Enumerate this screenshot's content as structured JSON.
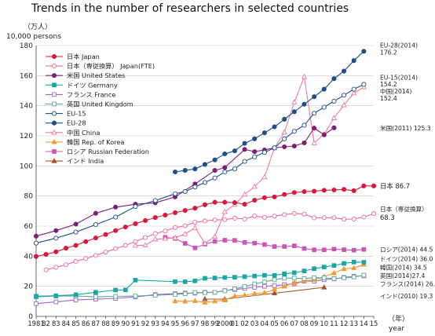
{
  "chart_data": {
    "type": "line",
    "title": "Trends in the number of researchers in selected countries",
    "ylabel_ja": "（万人）",
    "ylabel": "10,000 persons",
    "xlabel_ja": "（年）",
    "xlabel": "year",
    "ylim": [
      0,
      180
    ],
    "yticks": [
      0,
      20,
      40,
      60,
      80,
      100,
      120,
      140,
      160,
      180
    ],
    "grid": true,
    "legend_placement": "top-left",
    "x_tick_labels": [
      "1981",
      "82",
      "83",
      "84",
      "85",
      "86",
      "87",
      "88",
      "89",
      "90",
      "91",
      "92",
      "93",
      "94",
      "95",
      "96",
      "97",
      "98",
      "99",
      "2000",
      "01",
      "02",
      "03",
      "04",
      "05",
      "06",
      "07",
      "08",
      "09",
      "10",
      "11",
      "12",
      "13",
      "14",
      "15"
    ],
    "series": [
      {
        "key": "jp",
        "name": "日本 Japan",
        "color": "#d9183b",
        "marker": "circle",
        "filled": true,
        "dash": false,
        "x": [
          1981,
          1982,
          1983,
          1984,
          1985,
          1986,
          1987,
          1988,
          1989,
          1990,
          1991,
          1992,
          1993,
          1994,
          1995,
          1996,
          1997,
          1998,
          1999,
          2000,
          2001,
          2002,
          2003,
          2004,
          2005,
          2006,
          2007,
          2008,
          2009,
          2010,
          2011,
          2012,
          2013,
          2014,
          2015
        ],
        "y": [
          39.8,
          41.2,
          42.9,
          45.3,
          47.2,
          49.7,
          52.1,
          54.4,
          57.0,
          59.4,
          61.6,
          63.7,
          65.7,
          67.3,
          68.9,
          70.4,
          71.9,
          74.2,
          75.8,
          75.8,
          75.6,
          74.5,
          77.2,
          78.9,
          79.4,
          81.0,
          82.3,
          82.9,
          83.2,
          83.8,
          84.0,
          84.4,
          83.5,
          86.7,
          86.7
        ]
      },
      {
        "key": "jp_fte",
        "name": "日本（専従換算） Japan(FTE)",
        "color": "#ee6b8e",
        "marker": "circle",
        "filled": false,
        "dash": false,
        "x": [
          1982,
          1983,
          1984,
          1985,
          1986,
          1987,
          1988,
          1989,
          1990,
          1991,
          1992,
          1993,
          1994,
          1995,
          1996,
          1997,
          1998,
          1999,
          2000,
          2001,
          2002,
          2003,
          2004,
          2005,
          2006,
          2007,
          2008,
          2009,
          2010,
          2011,
          2012,
          2013,
          2014,
          2015
        ],
        "y": [
          30.9,
          32.6,
          34.3,
          36.6,
          38.4,
          40.5,
          42.7,
          45.0,
          47.2,
          49.7,
          52.4,
          55.0,
          56.8,
          59.0,
          60.2,
          62.5,
          63.4,
          64.1,
          64.3,
          65.3,
          64.7,
          66.7,
          65.8,
          66.7,
          67.6,
          68.4,
          68.0,
          65.5,
          65.6,
          65.6,
          64.6,
          64.7,
          66.0,
          68.3
        ]
      },
      {
        "key": "us",
        "name": "米国 United States",
        "color": "#7b2079",
        "marker": "circle",
        "filled": true,
        "dash": false,
        "x": [
          1981,
          1983,
          1985,
          1987,
          1989,
          1991,
          1993,
          1995,
          1997,
          1999,
          2000,
          2002,
          2003,
          2004,
          2005,
          2006,
          2007,
          2008,
          2009,
          2010,
          2011
        ],
        "y": [
          53.3,
          57.0,
          61.3,
          68.5,
          72.6,
          74.5,
          75.5,
          79.4,
          88.0,
          97.0,
          98.9,
          111.0,
          109.5,
          110.6,
          112.0,
          112.7,
          113.2,
          115.3,
          125.1,
          120.7,
          125.3
        ]
      },
      {
        "key": "de",
        "name": "ドイツ Germany",
        "color": "#18a6a6",
        "marker": "square",
        "filled": true,
        "dash": false,
        "x": [
          1981,
          1983,
          1985,
          1987,
          1989,
          1990,
          1991,
          1995,
          1996,
          1997,
          1998,
          1999,
          2000,
          2001,
          2002,
          2003,
          2004,
          2005,
          2006,
          2007,
          2008,
          2009,
          2010,
          2011,
          2012,
          2013,
          2014
        ],
        "y": [
          13.4,
          13.7,
          14.4,
          16.0,
          17.5,
          17.6,
          24.1,
          23.1,
          23.0,
          23.6,
          25.3,
          25.5,
          25.8,
          26.0,
          26.4,
          26.8,
          27.3,
          27.3,
          28.3,
          29.0,
          30.2,
          31.7,
          32.8,
          33.8,
          35.2,
          36.1,
          36.0
        ]
      },
      {
        "key": "fr",
        "name": "フランス France",
        "color": "#a561c7",
        "marker": "square",
        "filled": false,
        "dash": false,
        "x": [
          1981,
          1983,
          1985,
          1987,
          1989,
          1991,
          1993,
          1995,
          1996,
          1997,
          1998,
          1999,
          2000,
          2001,
          2002,
          2003,
          2004,
          2005,
          2006,
          2007,
          2008,
          2009,
          2010,
          2011,
          2012,
          2013,
          2014
        ],
        "y": [
          8.5,
          9.6,
          10.9,
          11.4,
          12.0,
          12.9,
          14.5,
          15.1,
          15.5,
          15.4,
          16.0,
          16.0,
          17.2,
          17.8,
          18.6,
          19.3,
          20.0,
          20.3,
          21.1,
          21.6,
          23.4,
          23.4,
          24.4,
          24.9,
          25.9,
          26.6,
          26.9
        ]
      },
      {
        "key": "uk",
        "name": "英国 United Kingdom",
        "color": "#5aa79b",
        "marker": "square",
        "filled": false,
        "dash": false,
        "x": [
          1981,
          1983,
          1985,
          1987,
          1989,
          1991,
          1993,
          1995,
          1996,
          1997,
          1998,
          1999,
          2000,
          2001,
          2002,
          2003,
          2004,
          2005,
          2006,
          2007,
          2008,
          2009,
          2010,
          2011,
          2012,
          2013,
          2014
        ],
        "y": [
          13.0,
          13.5,
          13.5,
          13.0,
          13.3,
          13.5,
          14.0,
          14.6,
          15.0,
          15.8,
          15.8,
          16.0,
          17.0,
          18.3,
          19.8,
          21.6,
          22.9,
          24.3,
          25.4,
          25.4,
          25.1,
          25.7,
          25.6,
          25.1,
          25.6,
          26.2,
          27.4
        ]
      },
      {
        "key": "eu15",
        "name": "EU-15",
        "color": "#1f4e8c",
        "marker": "circle",
        "filled": false,
        "dash": false,
        "x": [
          1981,
          1983,
          1985,
          1987,
          1989,
          1991,
          1993,
          1995,
          1996,
          1997,
          1998,
          1999,
          2000,
          2001,
          2002,
          2003,
          2004,
          2005,
          2006,
          2007,
          2008,
          2009,
          2010,
          2011,
          2012,
          2013,
          2014
        ],
        "y": [
          48.7,
          52.0,
          56.0,
          61.0,
          66.0,
          73.0,
          77.0,
          81.5,
          83.0,
          86.0,
          89.0,
          92.0,
          96.0,
          98.0,
          103.0,
          106.0,
          109.0,
          112.0,
          118.0,
          123.0,
          127.0,
          135.0,
          139.0,
          143.0,
          147.0,
          151.0,
          154.2
        ]
      },
      {
        "key": "eu28",
        "name": "EU-28",
        "color": "#1f4e8c",
        "marker": "circle",
        "filled": true,
        "dash": false,
        "x": [
          1995,
          1996,
          1997,
          1998,
          1999,
          2000,
          2001,
          2002,
          2003,
          2004,
          2005,
          2006,
          2007,
          2008,
          2009,
          2010,
          2011,
          2012,
          2013,
          2014
        ],
        "y": [
          96.0,
          97.0,
          98.0,
          101.0,
          104.0,
          108.0,
          110.0,
          115.0,
          118.0,
          122.0,
          126.0,
          131.0,
          136.0,
          141.0,
          146.0,
          151.0,
          158.0,
          163.0,
          170.0,
          176.2
        ]
      },
      {
        "key": "cn",
        "name": "中国 China",
        "color": "#f27a96",
        "marker": "triangle",
        "filled": false,
        "dash": false,
        "x": [
          1991,
          1992,
          1993,
          1994,
          1995,
          1996,
          1997,
          1998,
          1999,
          2000,
          2001,
          2002,
          2003,
          2004,
          2005,
          2006,
          2007,
          2008,
          2009,
          2010,
          2011,
          2012,
          2013,
          2014
        ],
        "y": [
          47.1,
          47.3,
          51.3,
          51.7,
          52.2,
          54.8,
          58.9,
          48.5,
          53.1,
          69.5,
          74.3,
          81.1,
          86.2,
          92.6,
          111.9,
          122.4,
          142.3,
          159.2,
          115.2,
          121.1,
          131.8,
          140.4,
          148.4,
          152.4
        ]
      },
      {
        "key": "kr",
        "name": "韓国 Rep. of Korea",
        "color": "#f29a33",
        "marker": "triangle",
        "filled": true,
        "dash": false,
        "x": [
          1995,
          1996,
          1997,
          1998,
          1999,
          2000,
          2001,
          2002,
          2003,
          2004,
          2005,
          2006,
          2007,
          2008,
          2009,
          2010,
          2011,
          2012,
          2013,
          2014
        ],
        "y": [
          10.1,
          10.0,
          10.3,
          9.3,
          10.1,
          10.8,
          13.6,
          14.1,
          15.1,
          15.6,
          17.9,
          20.0,
          22.2,
          23.6,
          24.4,
          26.4,
          28.8,
          31.6,
          32.2,
          34.5
        ]
      },
      {
        "key": "ru",
        "name": "ロシア Russian Federation",
        "color": "#cc55b5",
        "marker": "square",
        "filled": true,
        "dash": false,
        "x": [
          1994,
          1995,
          1996,
          1997,
          1998,
          1999,
          2000,
          2001,
          2002,
          2003,
          2004,
          2005,
          2006,
          2007,
          2008,
          2009,
          2010,
          2011,
          2012,
          2013,
          2014
        ],
        "y": [
          52.5,
          51.8,
          48.5,
          45.5,
          48.0,
          49.8,
          50.6,
          50.5,
          49.1,
          48.7,
          47.7,
          46.4,
          46.4,
          46.9,
          45.1,
          44.2,
          44.2,
          44.7,
          44.3,
          44.0,
          44.5
        ]
      },
      {
        "key": "in",
        "name": "インド India",
        "color": "#a0522d",
        "marker": "triangle",
        "filled": true,
        "dash": false,
        "x": [
          1998,
          2000,
          2005,
          2010
        ],
        "y": [
          11.5,
          11.5,
          15.4,
          19.3
        ]
      }
    ],
    "annotations": [
      {
        "text": "EU-28(2014)",
        "y": 180.3,
        "bold": false
      },
      {
        "text": "176.2",
        "y": 175.5,
        "bold": false
      },
      {
        "text": "EU-15(2014)",
        "y": 159.0,
        "bold": false
      },
      {
        "text": "154.2",
        "y": 154.5,
        "bold": false
      },
      {
        "text": "中国(2014)",
        "y": 149.8,
        "bold": false
      },
      {
        "text": "152.4",
        "y": 145.1,
        "bold": false
      },
      {
        "text": "米国(2011) 125.3",
        "y": 125.3,
        "bold": false
      },
      {
        "text": "日本 86.7",
        "y": 86.7,
        "bold": true
      },
      {
        "text": "日本（専従換算）",
        "y": 71.5,
        "bold": false
      },
      {
        "text": "68.3",
        "y": 65.8,
        "bold": true
      },
      {
        "text": "ロシア(2014) 44.5",
        "y": 44.5,
        "bold": false
      },
      {
        "text": "ドイツ(2014) 36.0",
        "y": 38.4,
        "bold": false
      },
      {
        "text": "韓国(2014) 34.5",
        "y": 32.7,
        "bold": false
      },
      {
        "text": "英国(2014)27.4",
        "y": 27.2,
        "bold": false
      },
      {
        "text": "フランス(2014) 26.9",
        "y": 21.6,
        "bold": false
      },
      {
        "text": "インド(2010) 19.3",
        "y": 13.6,
        "bold": false
      }
    ]
  }
}
